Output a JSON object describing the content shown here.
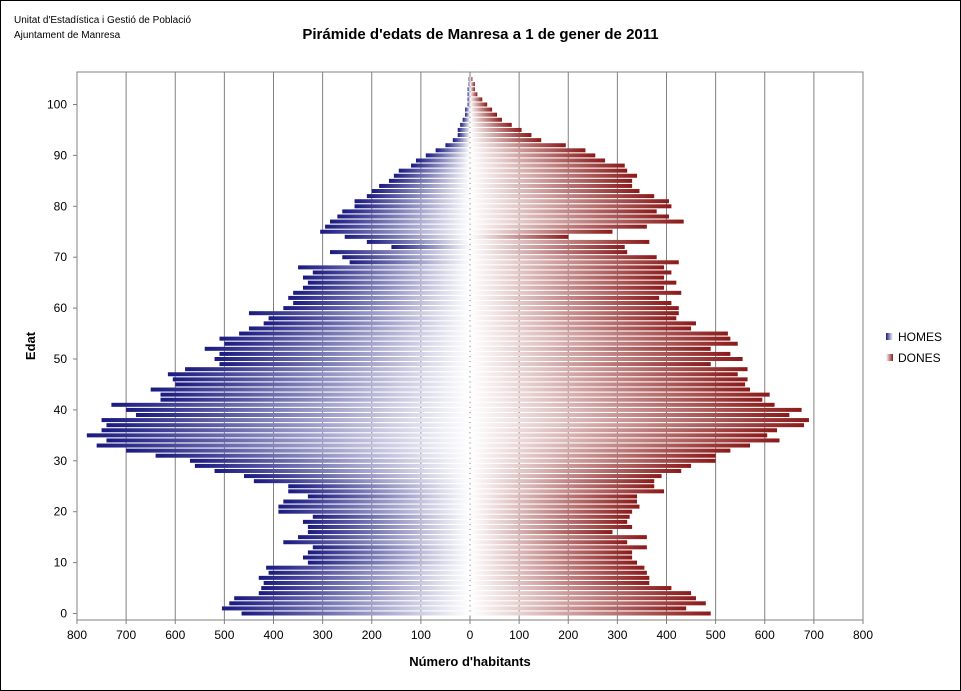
{
  "source": {
    "line1": "Unitat d'Estadística i Gestió de Població",
    "line2": "Ajuntament de Manresa"
  },
  "chart_data": {
    "type": "bar",
    "orientation": "horizontal",
    "title": "Pirámide d'edats de Manresa a 1 de gener de 2011",
    "xlabel": "Número d'habitants",
    "ylabel": "Edat",
    "xlim": [
      -800,
      800
    ],
    "xticks": [
      "800",
      "700",
      "600",
      "500",
      "400",
      "300",
      "200",
      "100",
      "0",
      "100",
      "200",
      "300",
      "400",
      "500",
      "600",
      "700",
      "800"
    ],
    "yticks": [
      "0",
      "10",
      "20",
      "30",
      "40",
      "50",
      "60",
      "70",
      "80",
      "90",
      "100"
    ],
    "ylim": [
      0,
      105
    ],
    "grid": "vertical",
    "legend_position": "right",
    "series": [
      {
        "name": "HOMES",
        "color": "#1a1a80",
        "values": [
          465,
          505,
          490,
          480,
          430,
          425,
          420,
          430,
          410,
          415,
          330,
          340,
          330,
          320,
          380,
          350,
          330,
          330,
          340,
          320,
          390,
          390,
          380,
          330,
          370,
          370,
          440,
          460,
          520,
          560,
          570,
          640,
          700,
          760,
          740,
          780,
          750,
          740,
          750,
          680,
          700,
          730,
          630,
          630,
          650,
          600,
          605,
          615,
          580,
          510,
          520,
          510,
          540,
          500,
          510,
          470,
          450,
          420,
          410,
          450,
          380,
          360,
          370,
          360,
          340,
          330,
          340,
          320,
          350,
          245,
          260,
          285,
          160,
          210,
          255,
          305,
          295,
          285,
          270,
          260,
          235,
          235,
          210,
          200,
          185,
          165,
          155,
          145,
          120,
          110,
          90,
          70,
          50,
          35,
          25,
          25,
          20,
          15,
          10,
          10,
          5,
          5,
          5,
          5,
          3,
          3
        ]
      },
      {
        "name": "DONES",
        "color": "#8b1a1a",
        "values": [
          490,
          440,
          480,
          460,
          450,
          410,
          365,
          365,
          360,
          355,
          340,
          330,
          330,
          360,
          320,
          360,
          290,
          330,
          320,
          325,
          330,
          345,
          340,
          340,
          395,
          375,
          375,
          390,
          430,
          450,
          500,
          500,
          530,
          570,
          630,
          605,
          625,
          680,
          690,
          650,
          675,
          620,
          595,
          610,
          570,
          560,
          565,
          545,
          565,
          490,
          555,
          530,
          490,
          545,
          530,
          525,
          450,
          460,
          420,
          425,
          425,
          410,
          385,
          430,
          395,
          420,
          395,
          410,
          395,
          425,
          380,
          320,
          315,
          365,
          200,
          290,
          360,
          435,
          405,
          380,
          410,
          405,
          375,
          345,
          330,
          330,
          340,
          320,
          315,
          275,
          255,
          235,
          195,
          145,
          125,
          105,
          85,
          65,
          55,
          45,
          35,
          25,
          15,
          10,
          10,
          5
        ]
      }
    ]
  }
}
